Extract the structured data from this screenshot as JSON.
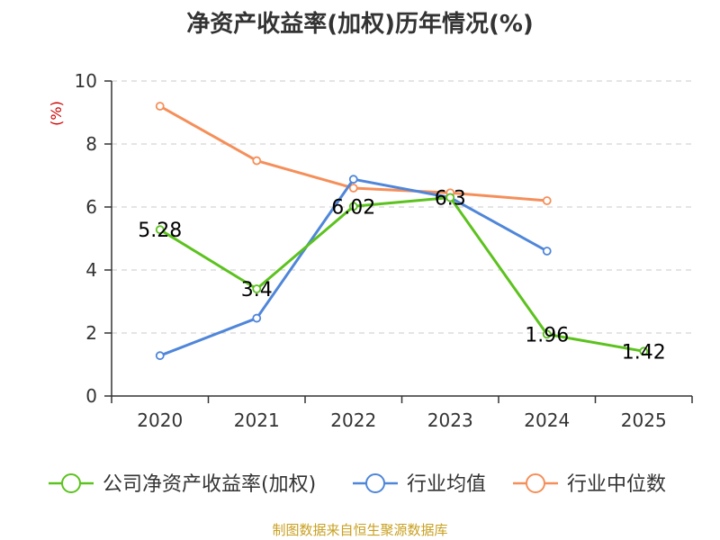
{
  "chart_data": {
    "type": "line",
    "title": "净资产收益率(加权)历年情况(%)",
    "ylabel": "(%)",
    "xlabel": "",
    "ylim": [
      0,
      10
    ],
    "yticks": [
      0,
      2,
      4,
      6,
      8,
      10
    ],
    "categories": [
      "2020",
      "2021",
      "2022",
      "2023",
      "2024",
      "2025"
    ],
    "grid": true,
    "legend_position": "bottom",
    "series": [
      {
        "name": "公司净资产收益率(加权)",
        "color": "#5cc21e",
        "values": [
          5.28,
          3.4,
          6.02,
          6.3,
          1.96,
          1.42
        ],
        "labels": [
          "5.28",
          "3.4",
          "6.02",
          "6.3",
          "1.96",
          "1.42"
        ]
      },
      {
        "name": "行业均值",
        "color": "#4f86d9",
        "values": [
          1.28,
          2.47,
          6.88,
          6.3,
          4.6,
          null
        ]
      },
      {
        "name": "行业中位数",
        "color": "#f58f5a",
        "values": [
          9.2,
          7.47,
          6.6,
          6.45,
          6.2,
          null
        ]
      }
    ]
  },
  "footer": {
    "source": "制图数据来自恒生聚源数据库"
  }
}
